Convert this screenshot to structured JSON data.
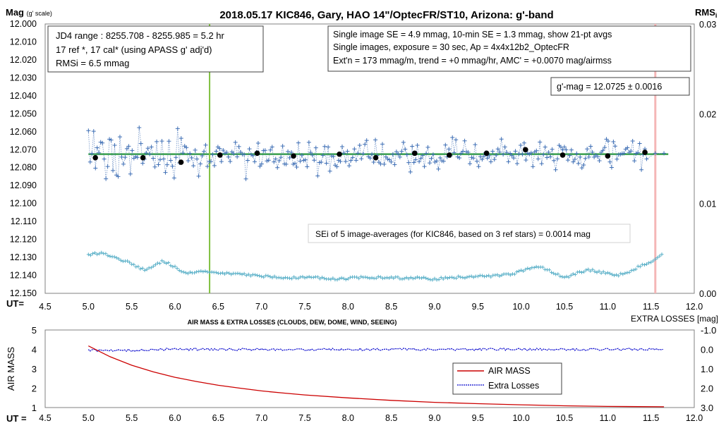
{
  "chart_data": [
    {
      "type": "scatter",
      "title": "2018.05.17  KIC846,  Gary, HAO  14\"/OptecFR/ST10,  Arizona:  g'-band",
      "ylabel_left": "Mag",
      "ylabel_left_note": "(g' scale)",
      "ylabel_right": "RMS",
      "ylabel_right_note": "i",
      "xlabel": "UT=",
      "xlim": [
        4.5,
        12.0
      ],
      "ylim_left": [
        12.0,
        12.15
      ],
      "ylim_left_inverted": true,
      "ylim_right": [
        0.0,
        0.03
      ],
      "xticks": [
        "4.5",
        "5.0",
        "5.5",
        "6.0",
        "6.5",
        "7.0",
        "7.5",
        "8.0",
        "8.5",
        "9.0",
        "9.5",
        "10.0",
        "10.5",
        "11.0",
        "11.5",
        "12.0"
      ],
      "yticks_left": [
        "12.000",
        "12.010",
        "12.020",
        "12.030",
        "12.040",
        "12.050",
        "12.060",
        "12.070",
        "12.080",
        "12.090",
        "12.100",
        "12.110",
        "12.120",
        "12.130",
        "12.140",
        "12.150"
      ],
      "yticks_right": [
        "0.03",
        "0.02",
        "0.01",
        "0.00"
      ],
      "info_left": [
        "JD4 range : 8255.708 - 8255.985 =  5.2  hr",
        "17 ref *, 17 cal* (using APASS g' adj'd)",
        "RMSi = 6.5 mmag"
      ],
      "info_right": [
        "Single image SE = 4.9 mmag, 10-min SE = 1.3 mmag, show  21-pt avgs",
        "Single images, exposure = 30 sec, Ap = 4x4x12b2_OptecFR",
        "Ext'n = 173 mmag/m, trend =  +0 mmag/hr, AMC' = +0.0070 mag/airmss"
      ],
      "gmag_box": "g'-mag = 12.0725 ± 0.0016",
      "sei_note": "SEi of 5 image-averages (for KIC846, based on 3 ref stars) = 0.0014  mag",
      "reference_line_mag": 12.0725,
      "vertical_line_green_ut": 6.4,
      "vertical_line_pink_ut": 11.55,
      "series": [
        {
          "role": "single-image",
          "color": "#3f6fb5",
          "ut_start": 5.0,
          "ut_end": 11.45,
          "count": 320,
          "center_mag": 12.073,
          "scatter_mag": 0.0075,
          "trailing_points": [
            [
              11.55,
              12.072
            ],
            [
              11.65,
              12.072
            ]
          ]
        },
        {
          "role": "21-pt-averages",
          "color": "#000000",
          "points": [
            [
              5.08,
              12.0745
            ],
            [
              5.63,
              12.0745
            ],
            [
              6.07,
              12.077
            ],
            [
              6.52,
              12.073
            ],
            [
              6.95,
              12.072
            ],
            [
              7.37,
              12.0735
            ],
            [
              7.9,
              12.0725
            ],
            [
              8.32,
              12.0745
            ],
            [
              8.77,
              12.072
            ],
            [
              9.17,
              12.073
            ],
            [
              9.6,
              12.072
            ],
            [
              10.05,
              12.07
            ],
            [
              10.48,
              12.073
            ],
            [
              11.0,
              12.0735
            ],
            [
              11.43,
              12.0715
            ]
          ]
        },
        {
          "role": "rms",
          "color": "#5ab0c8",
          "points": [
            [
              5.0,
              0.0023
            ],
            [
              5.15,
              0.0025
            ],
            [
              5.3,
              0.002
            ],
            [
              5.45,
              0.0015
            ],
            [
              5.55,
              0.001
            ],
            [
              5.65,
              0.0006
            ],
            [
              5.75,
              0.001
            ],
            [
              5.85,
              0.0016
            ],
            [
              5.95,
              0.0012
            ],
            [
              6.05,
              0.0006
            ],
            [
              6.15,
              0.0003
            ],
            [
              6.3,
              0.0004
            ],
            [
              6.5,
              0.0003
            ],
            [
              6.8,
              0.0001
            ],
            [
              7.0,
              -0.0001
            ],
            [
              7.3,
              -0.0003
            ],
            [
              7.6,
              -0.0002
            ],
            [
              7.9,
              -0.0004
            ],
            [
              8.2,
              -0.0002
            ],
            [
              8.5,
              -0.0003
            ],
            [
              8.8,
              -0.0003
            ],
            [
              9.0,
              -0.0004
            ],
            [
              9.3,
              -0.0002
            ],
            [
              9.6,
              -0.0001
            ],
            [
              9.9,
              0.0001
            ],
            [
              10.0,
              0.0005
            ],
            [
              10.2,
              0.001
            ],
            [
              10.35,
              0.0004
            ],
            [
              10.5,
              -0.0003
            ],
            [
              10.65,
              0.0003
            ],
            [
              10.8,
              0.0006
            ],
            [
              10.95,
              0.0003
            ],
            [
              11.1,
              0.0
            ],
            [
              11.25,
              0.0003
            ],
            [
              11.4,
              0.0012
            ],
            [
              11.5,
              0.0015
            ],
            [
              11.65,
              0.0026
            ]
          ]
        }
      ]
    },
    {
      "type": "line",
      "title": "AIR MASS & EXTRA LOSSES (CLOUDS, DEW, DOME, WIND, SEEING)",
      "ylabel_left": "AIR MASS",
      "ylabel_right": "EXTRA LOSSES [mag]",
      "xlabel": "UT =",
      "xlim": [
        4.5,
        12.0
      ],
      "ylim_left": [
        1,
        5
      ],
      "ylim_right": [
        3.0,
        -1.0
      ],
      "xticks": [
        "4.5",
        "5.0",
        "5.5",
        "6.0",
        "6.5",
        "7.0",
        "7.5",
        "8.0",
        "8.5",
        "9.0",
        "9.5",
        "10.0",
        "10.5",
        "11.0",
        "11.5",
        "12.0"
      ],
      "yticks_left": [
        "5",
        "4",
        "3",
        "2",
        "1"
      ],
      "yticks_right": [
        "-1.0",
        "0.0",
        "1.0",
        "2.0",
        "3.0"
      ],
      "series": [
        {
          "name": "AIR MASS",
          "color": "#cc0000",
          "points": [
            [
              5.0,
              4.18
            ],
            [
              5.25,
              3.62
            ],
            [
              5.5,
              3.18
            ],
            [
              5.75,
              2.84
            ],
            [
              6.0,
              2.56
            ],
            [
              6.25,
              2.34
            ],
            [
              6.5,
              2.15
            ],
            [
              6.75,
              2.0
            ],
            [
              7.0,
              1.86
            ],
            [
              7.25,
              1.75
            ],
            [
              7.5,
              1.65
            ],
            [
              8.0,
              1.5
            ],
            [
              8.5,
              1.37
            ],
            [
              9.0,
              1.27
            ],
            [
              9.5,
              1.2
            ],
            [
              10.0,
              1.14
            ],
            [
              10.5,
              1.09
            ],
            [
              11.0,
              1.06
            ],
            [
              11.65,
              1.04
            ]
          ]
        },
        {
          "name": "Extra Losses",
          "color": "#0000cc",
          "ut_start": 5.0,
          "ut_end": 11.65,
          "center_value": 0.0
        }
      ]
    }
  ]
}
